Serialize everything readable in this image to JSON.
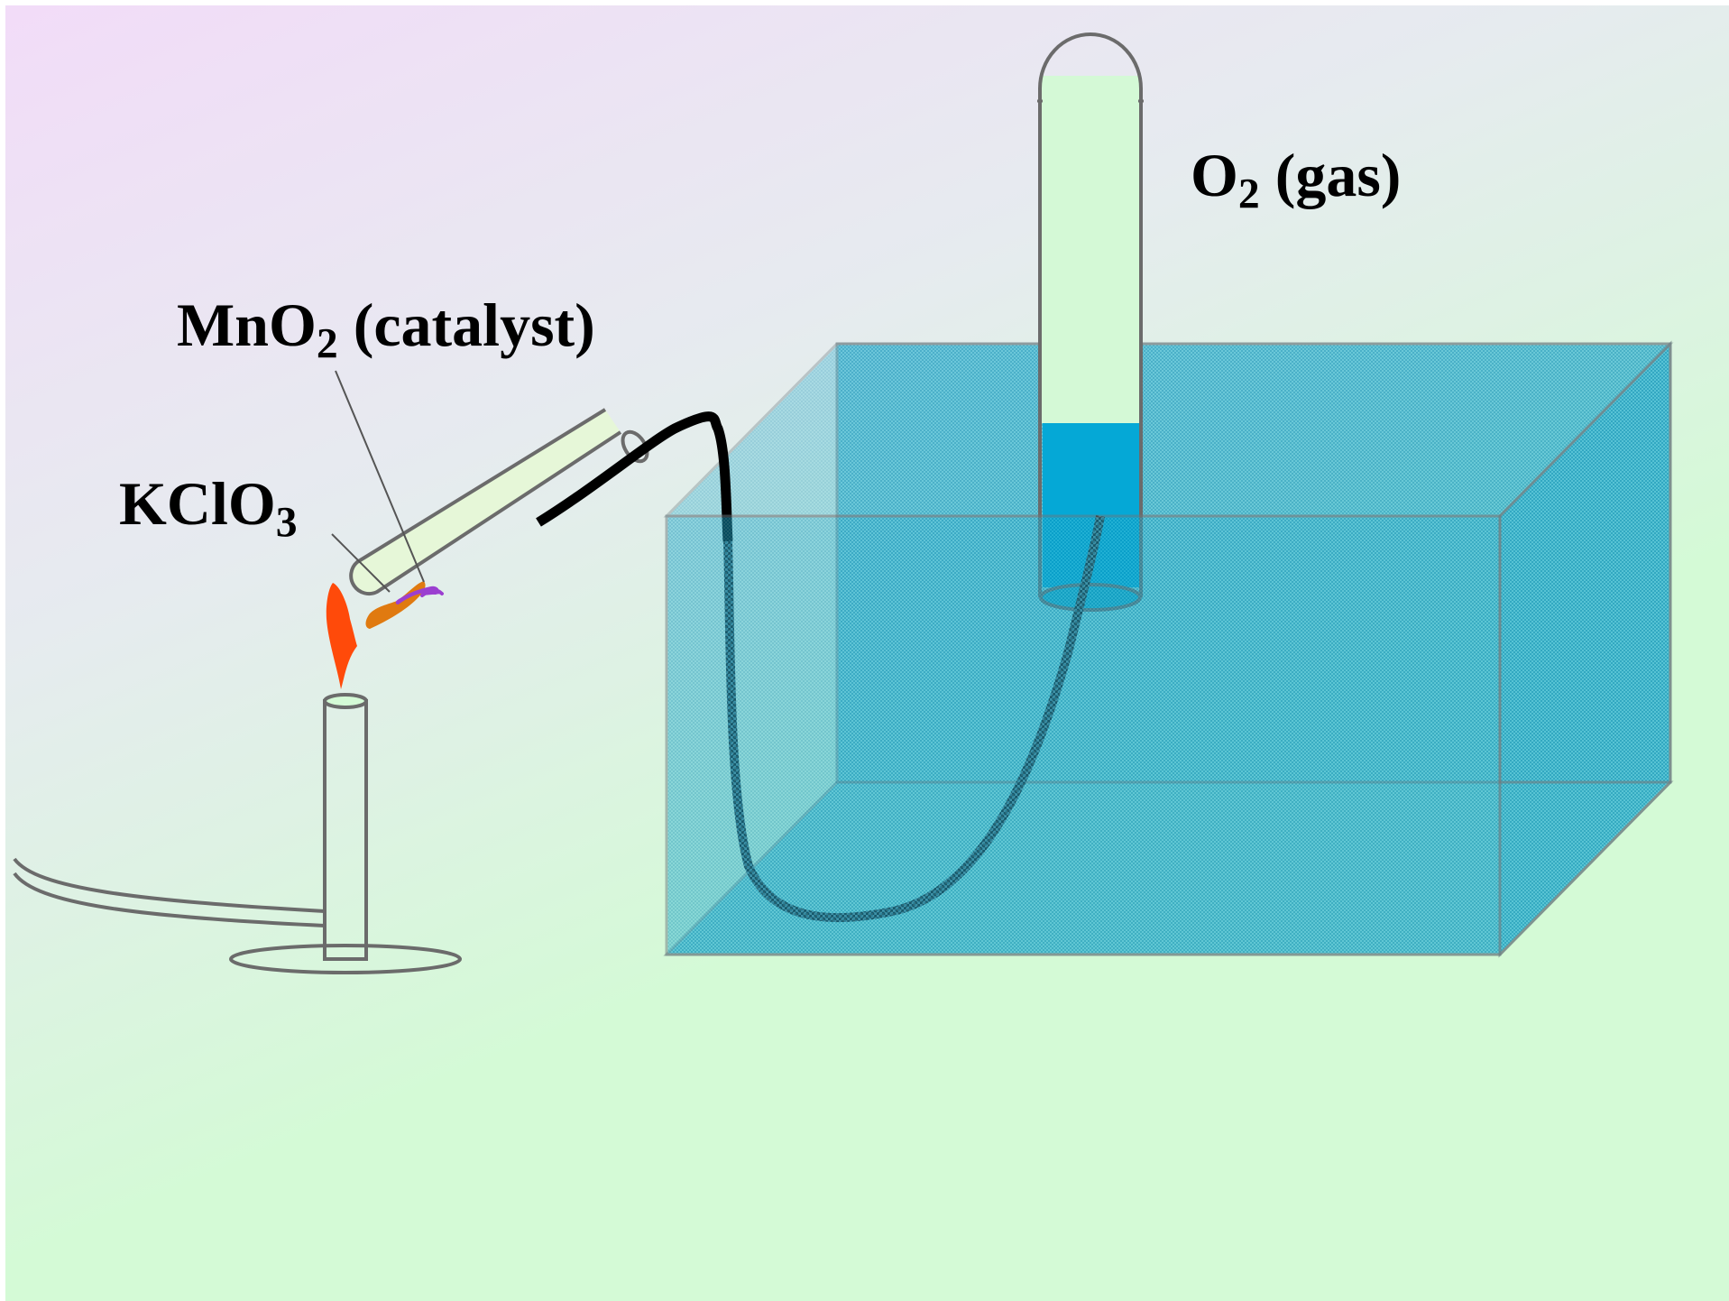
{
  "labels": {
    "catalyst": {
      "formula": "MnO",
      "subscript": "2",
      "suffix": " (catalyst)"
    },
    "reactant": {
      "formula": "KClO",
      "subscript": "3"
    },
    "product": {
      "formula": "O",
      "subscript": "2",
      "suffix": " (gas)"
    }
  },
  "colors": {
    "background_top_left": "#f2dcf8",
    "background_center": "#e6ebef",
    "background_bottom": "#d4fad6",
    "water": "#1aa9c9",
    "water_in_tube": "#05a8d6",
    "gas_space": "#d4f9d6",
    "glass_outline": "#6b6b6b",
    "flame": "#ff4a0a",
    "potassium_chlorate": "#e07a10",
    "manganese_dioxide": "#9b3fd0",
    "delivery_tube": "#000000"
  },
  "icons": {
    "burner": "bunsen-burner-icon",
    "flame": "flame-icon",
    "test_tube": "test-tube-icon",
    "trough": "water-trough-icon",
    "collection_tube": "gas-collection-tube-icon",
    "delivery_tube": "delivery-tube-icon"
  }
}
